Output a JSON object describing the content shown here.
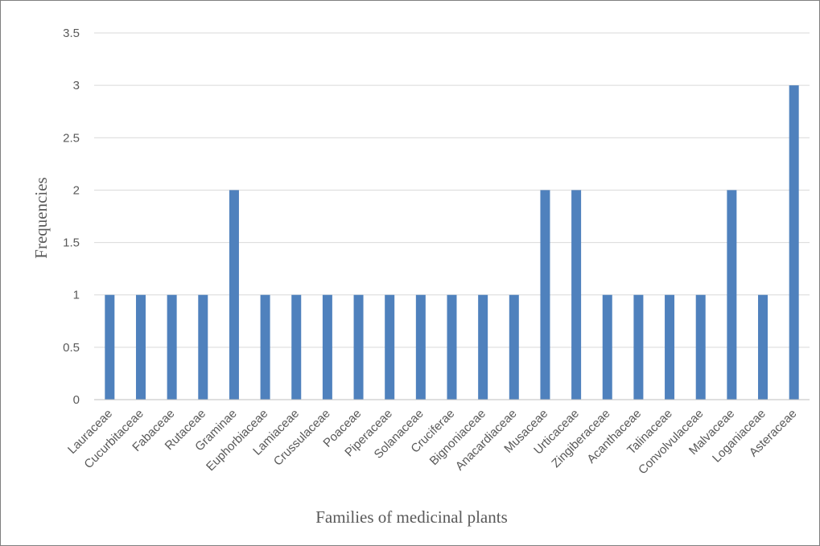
{
  "chart_data": {
    "type": "bar",
    "title": "",
    "xlabel": "Families of medicinal plants",
    "ylabel": "Frequencies",
    "categories": [
      "Lauraceae",
      "Cucurbitaceae",
      "Fabaceae",
      "Rutaceae",
      "Graminae",
      "Euphorbiaceae",
      "Lamiaceae",
      "Crussulaceae",
      "Poaceae",
      "Piperaceae",
      "Solanaceae",
      "Cruciferae",
      "Bignoniaceae",
      "Anacardiaceae",
      "Musaceae",
      "Urticaceae",
      "Zingiberaceae",
      "Acanthaceae",
      "Talinaceae",
      "Convolvulaceae",
      "Malvaceae",
      "Loganiaceae",
      "Asteraceae"
    ],
    "values": [
      1,
      1,
      1,
      1,
      2,
      1,
      1,
      1,
      1,
      1,
      1,
      1,
      1,
      1,
      2,
      2,
      1,
      1,
      1,
      1,
      2,
      1,
      3
    ],
    "ylim": [
      0,
      3.5
    ],
    "yticks": [
      "0",
      "0.5",
      "1",
      "1.5",
      "2",
      "2.5",
      "3",
      "3.5"
    ],
    "grid": true,
    "legend": "none",
    "bar_color": "#4f81bd"
  }
}
